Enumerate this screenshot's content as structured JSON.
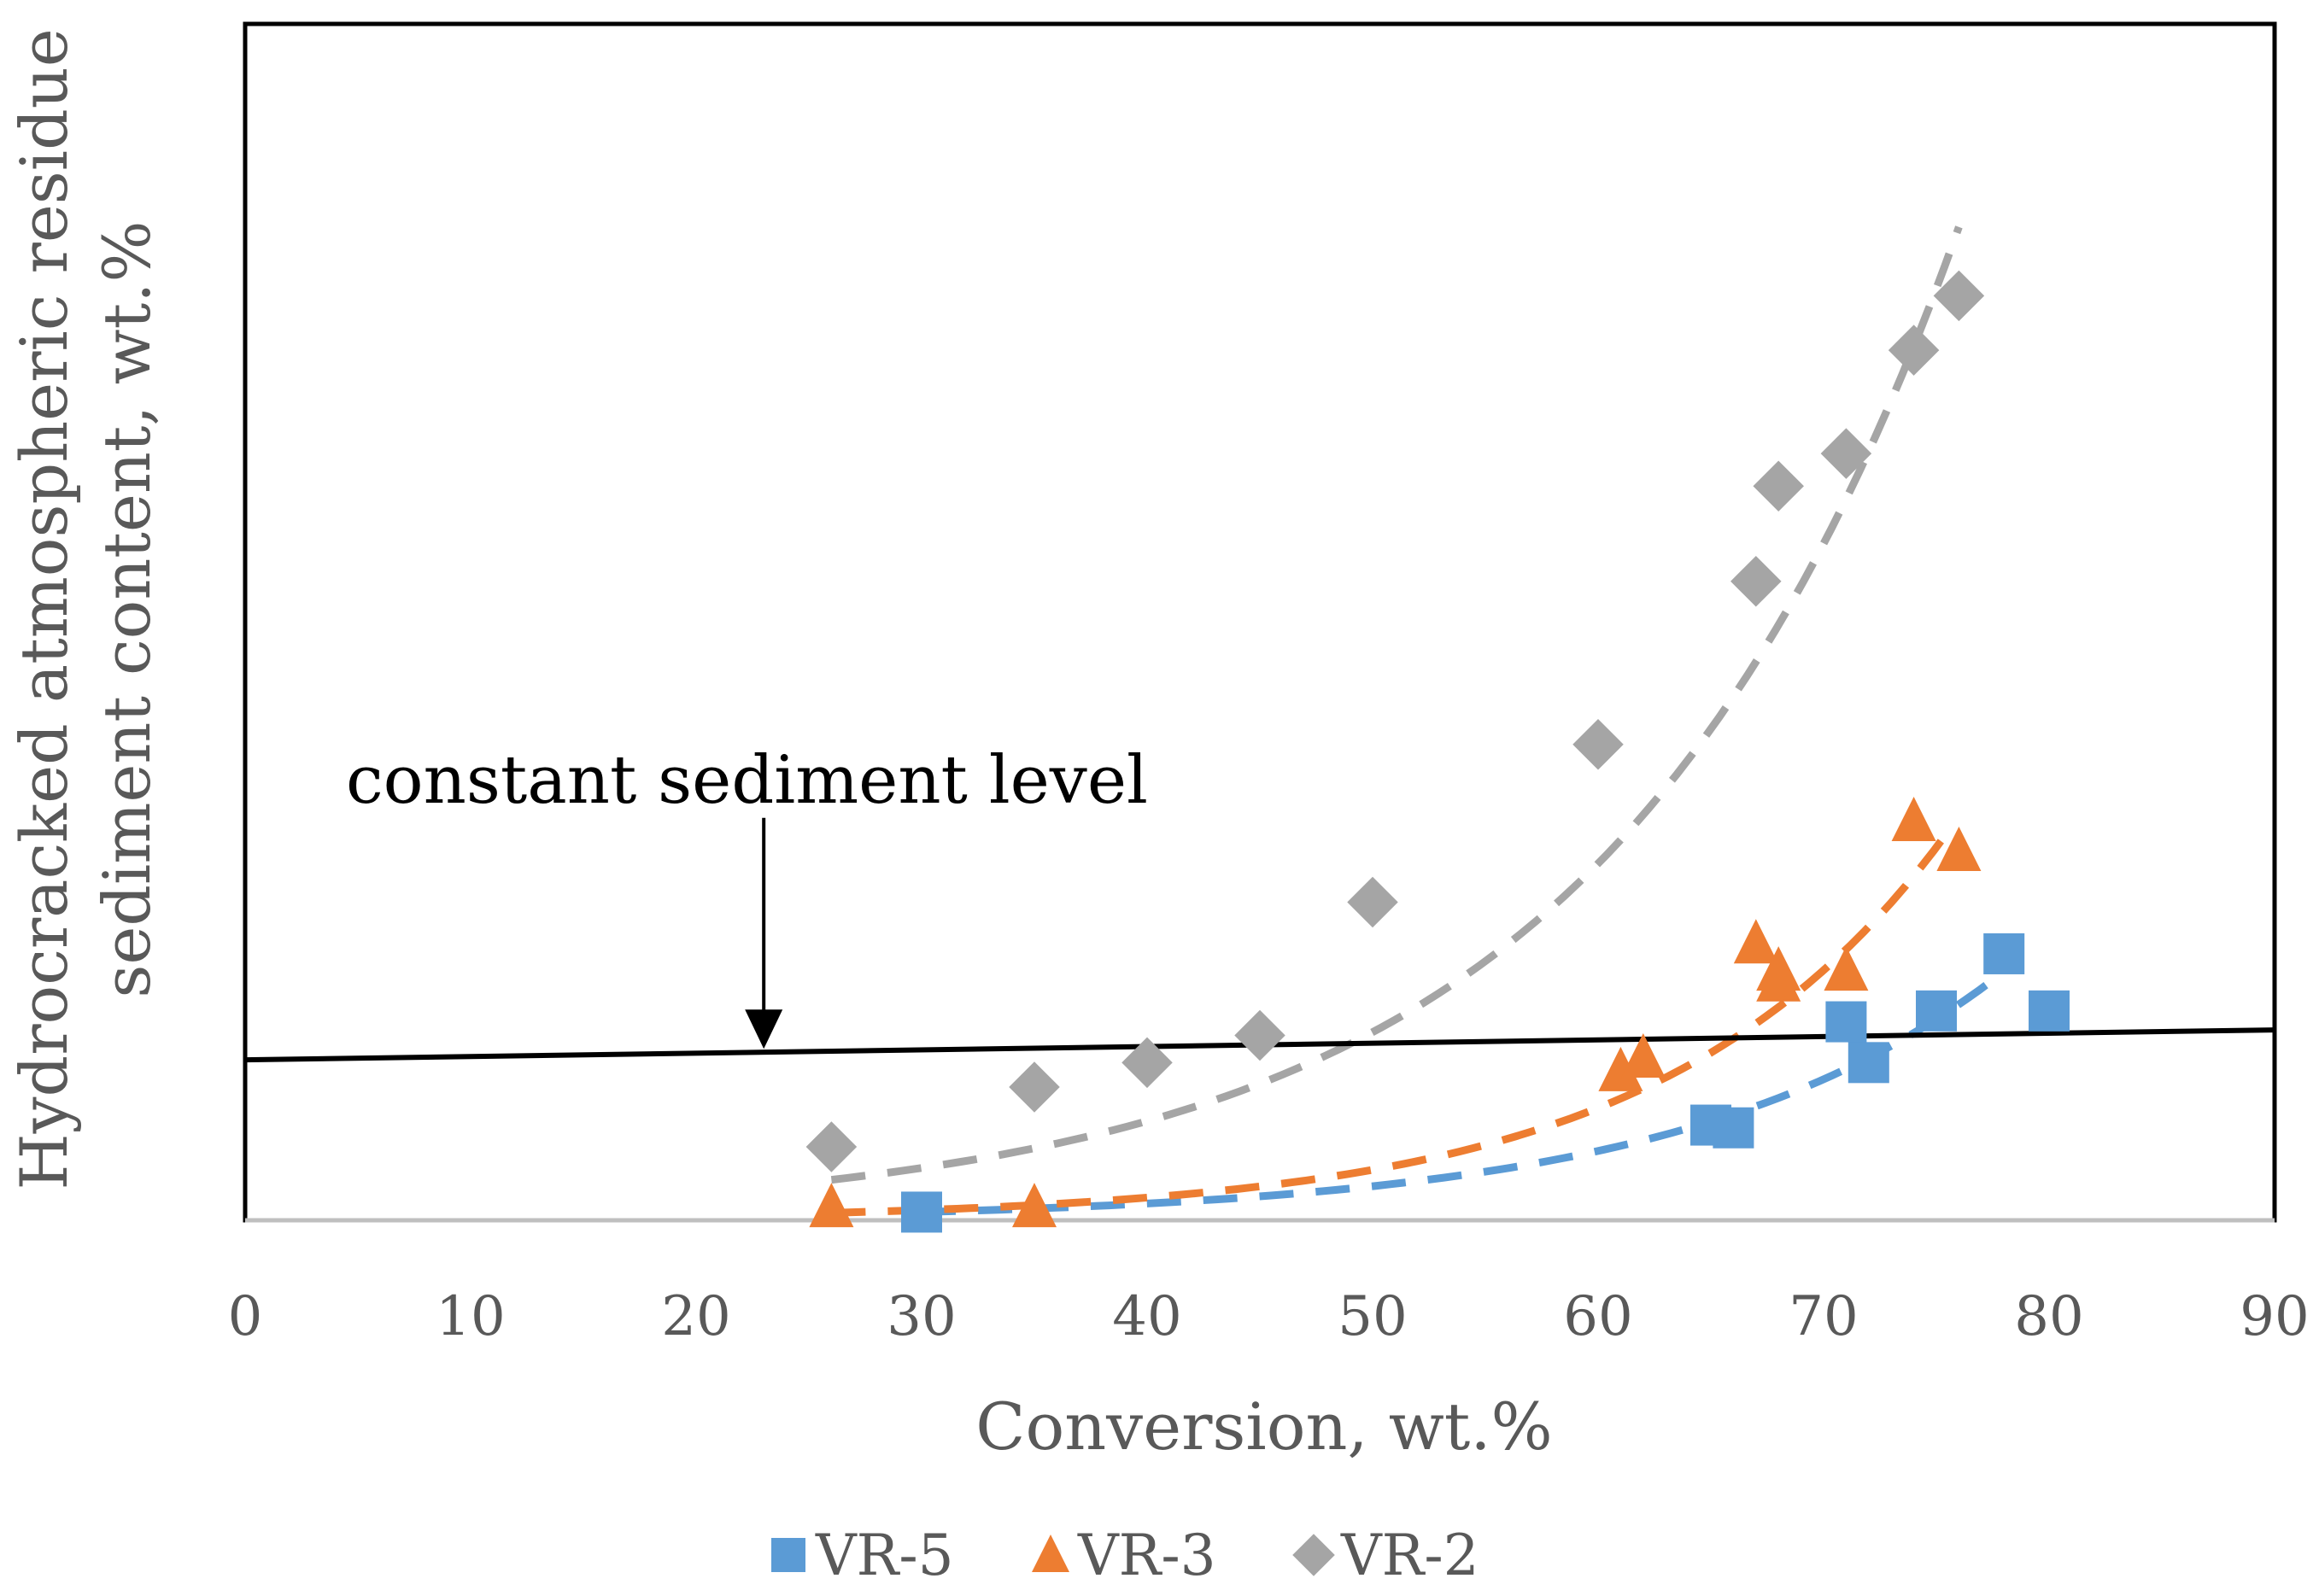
{
  "chart_data": {
    "type": "scatter",
    "title": "",
    "xlabel": "Conversion, wt.%",
    "ylabel_lines": [
      "Hydrocracked atmospheric residue",
      "sediment content, wt.%"
    ],
    "xlim": [
      0,
      90
    ],
    "ylim": [
      0,
      4.4
    ],
    "x_ticks": [
      "0",
      "10",
      "20",
      "30",
      "40",
      "50",
      "60",
      "70",
      "80",
      "90"
    ],
    "y_ticks": [],
    "grid": false,
    "legend_position": "bottom-center",
    "series": [
      {
        "name": "VR-5",
        "marker": "square",
        "color": "#5B9BD5",
        "points": [
          [
            30,
            0.03
          ],
          [
            65,
            0.35
          ],
          [
            66,
            0.34
          ],
          [
            71,
            0.73
          ],
          [
            72,
            0.58
          ],
          [
            75,
            0.77
          ],
          [
            78,
            0.98
          ],
          [
            80,
            0.77
          ]
        ],
        "trendline": {
          "style": "dashed",
          "type": "exponential",
          "x_range": [
            30,
            77.5
          ],
          "a": 0.0036,
          "b": 0.071
        }
      },
      {
        "name": "VR-3",
        "marker": "triangle",
        "color": "#ED7D31",
        "points": [
          [
            26,
            0.05
          ],
          [
            35,
            0.05
          ],
          [
            61,
            0.55
          ],
          [
            62,
            0.6
          ],
          [
            67,
            1.02
          ],
          [
            68,
            0.92
          ],
          [
            68,
            0.88
          ],
          [
            71,
            0.92
          ],
          [
            74,
            1.47
          ],
          [
            76,
            1.36
          ]
        ],
        "trendline": {
          "style": "dashed",
          "type": "exponential",
          "x_range": [
            26,
            75.5
          ],
          "a": 0.0034,
          "b": 0.08
        }
      },
      {
        "name": "VR-2",
        "marker": "diamond",
        "color": "#A5A5A5",
        "points": [
          [
            26,
            0.27
          ],
          [
            35,
            0.49
          ],
          [
            40,
            0.58
          ],
          [
            45,
            0.68
          ],
          [
            50,
            1.17
          ],
          [
            60,
            1.75
          ],
          [
            67,
            2.35
          ],
          [
            68,
            2.7
          ],
          [
            71,
            2.82
          ],
          [
            74,
            3.2
          ],
          [
            76,
            3.4
          ]
        ],
        "trendline": {
          "style": "dashed",
          "type": "exponential",
          "x_range": [
            26,
            76
          ],
          "a": 0.0282,
          "b": 0.064
        }
      }
    ],
    "reference_line": {
      "label": "constant sediment level",
      "color": "#000000",
      "x": [
        0,
        90
      ],
      "y": [
        0.59,
        0.7
      ],
      "arrow_x": 23,
      "arrow_from_y": 1.48
    }
  }
}
